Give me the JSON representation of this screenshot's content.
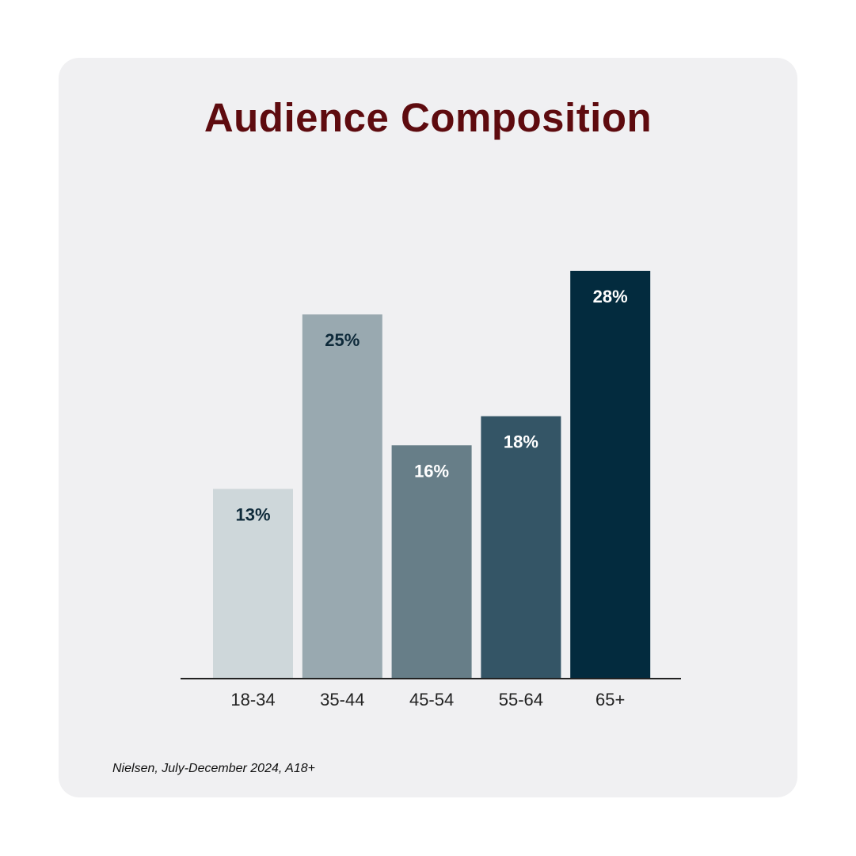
{
  "chart_data": {
    "type": "bar",
    "title": "Audience Composition",
    "categories": [
      "18-34",
      "35-44",
      "45-54",
      "55-64",
      "65+"
    ],
    "values": [
      13,
      25,
      16,
      18,
      28
    ],
    "value_labels": [
      "13%",
      "25%",
      "16%",
      "18%",
      "28%"
    ],
    "bar_colors": [
      "#ced7da",
      "#99a9b0",
      "#677e88",
      "#345566",
      "#032b3e"
    ],
    "label_colors": [
      "#0e2a3a",
      "#0e2a3a",
      "#ffffff",
      "#ffffff",
      "#ffffff"
    ],
    "xlabel": "",
    "ylabel": "",
    "ylim": [
      0,
      28
    ],
    "grid": false,
    "legend": "none"
  },
  "footnote": "Nielsen, July-December 2024, A18+",
  "colors": {
    "title": "#5e0b0f",
    "card_background": "#f0f0f2",
    "axis_line": "#222222"
  }
}
